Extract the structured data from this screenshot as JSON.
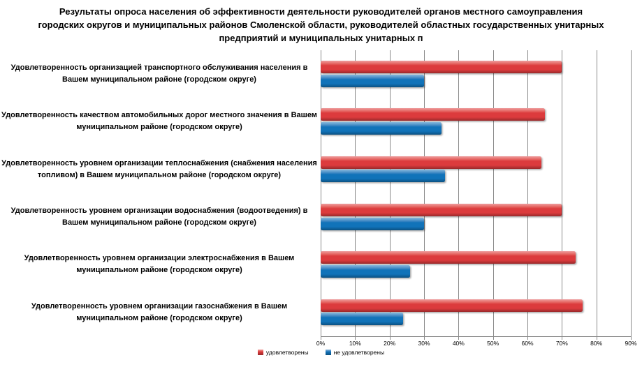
{
  "title": "Результаты опроса населения об эффективности деятельности руководителей органов местного самоуправления городских округов и муниципальных районов Смоленской области, руководителей областных государственных унитарных предприятий и муниципальных унитарных п",
  "chart_data": {
    "type": "bar",
    "orientation": "horizontal",
    "title": "Результаты опроса населения об эффективности деятельности руководителей органов местного самоуправления городских округов и муниципальных районов Смоленской области, руководителей областных государственных унитарных предприятий и муниципальных унитарных п",
    "categories": [
      "Удовлетворенность организацией транспортного обслуживания населения в Вашем муниципальном районе (городском округе)",
      "Удовлетворенность качеством автомобильных дорог местного значения в Вашем муниципальном районе (городском округе)",
      "Удовлетворенность уровнем организации теплоснабжения (снабжения населения топливом) в Вашем муниципальном районе (городском округе)",
      "Удовлетворенность уровнем организации водоснабжения (водоотведения) в Вашем муниципальном районе (городском округе)",
      "Удовлетворенность уровнем организации электроснабжения в Вашем муниципальном районе (городском округе)",
      "Удовлетворенность уровнем организации газоснабжения в Вашем муниципальном районе (городском округе)"
    ],
    "series": [
      {
        "key": "satisfied",
        "name": "удовлетворены",
        "color": "#DC3B3D",
        "values": [
          70,
          65,
          64,
          70,
          74,
          76
        ]
      },
      {
        "key": "dissatisfied",
        "name": "не удовлетворены",
        "color": "#1173B9",
        "values": [
          30,
          35,
          36,
          30,
          26,
          24
        ]
      }
    ],
    "x_ticks": [
      "0%",
      "10%",
      "20%",
      "30%",
      "40%",
      "50%",
      "60%",
      "70%",
      "80%",
      "90%"
    ],
    "xlim": [
      0,
      90
    ],
    "grid": "vertical",
    "legend_position": "bottom",
    "gridline_color": "#8a8a8a",
    "text_color": "#000000"
  }
}
